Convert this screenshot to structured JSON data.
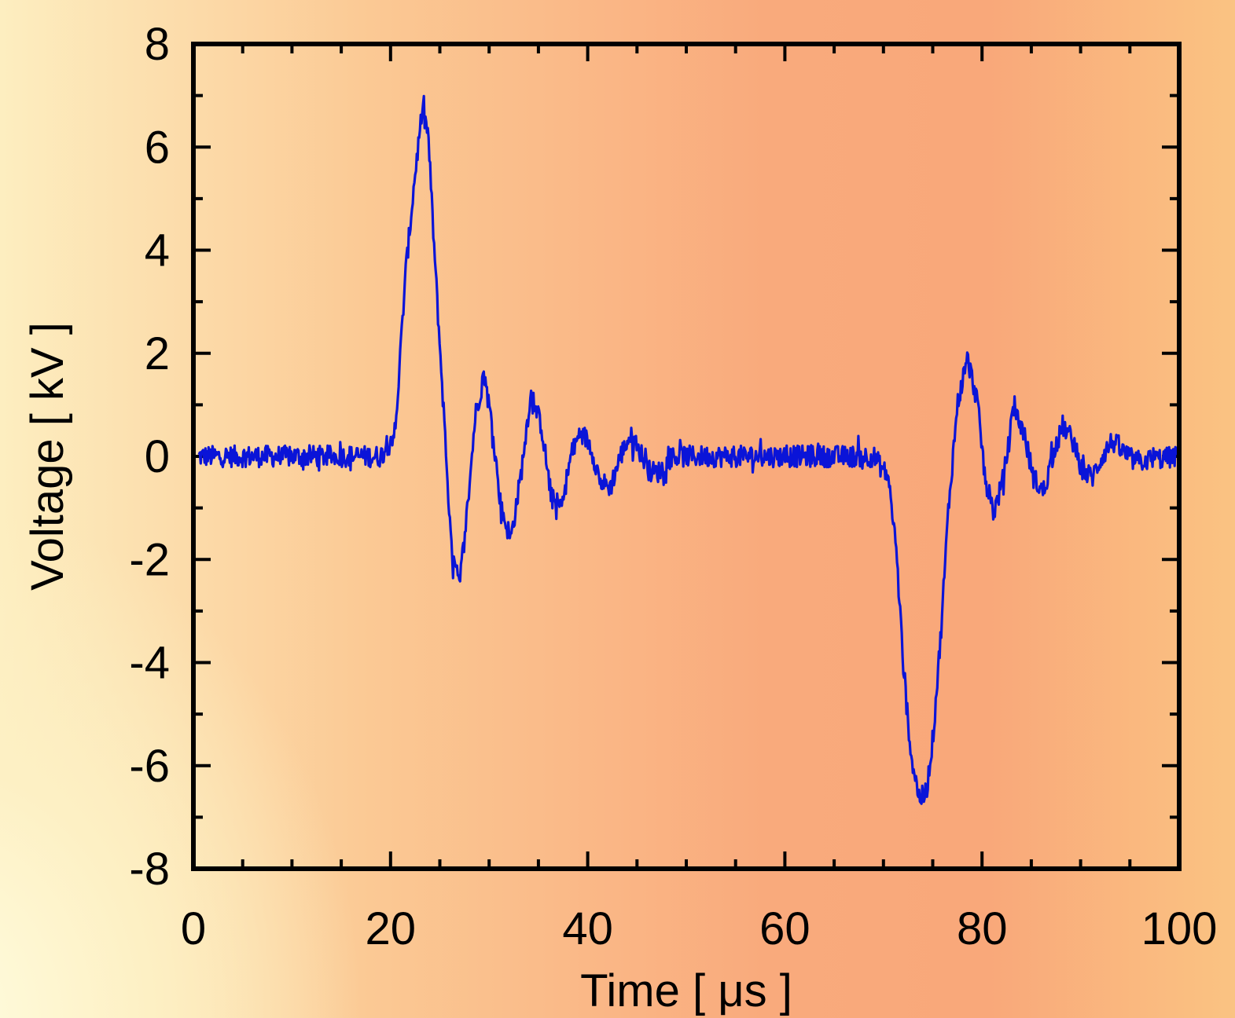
{
  "chart_data": {
    "type": "line",
    "title": "",
    "xlabel": "Time [ μs ]",
    "ylabel": "Voltage [ kV ]",
    "xlim": [
      0,
      100
    ],
    "ylim": [
      -8,
      8
    ],
    "x_ticks": [
      "0",
      "20",
      "40",
      "60",
      "80",
      "100"
    ],
    "y_ticks": [
      "8",
      "6",
      "4",
      "2",
      "0",
      "-2",
      "-4",
      "-6",
      "-8"
    ],
    "grid": false,
    "line_color": "#0a14d8",
    "series": [
      {
        "x": [
          0,
          5,
          10,
          15,
          19,
          20.5,
          21.5,
          22.5,
          23.2,
          23.8,
          24.5,
          25.5,
          26.2,
          27,
          27.8,
          28.6,
          29.5,
          30.3,
          31.2,
          32.2,
          33.2,
          34.2,
          35.3,
          36.3,
          37.3,
          38.3,
          39.3,
          40.3,
          41.3,
          42.3,
          43.3,
          44.3,
          45.3,
          46.3,
          47.3,
          48.5,
          55,
          60,
          65,
          69,
          70.5,
          71.3,
          72,
          72.8,
          73.6,
          74.3,
          75,
          75.8,
          76.6,
          77.5,
          78.5,
          79.5,
          80.3,
          81.2,
          82.2,
          83.2,
          84.2,
          85.2,
          86.2,
          87.2,
          88.2,
          89.2,
          90.2,
          91.2,
          92.2,
          93.2,
          94.2,
          95.5,
          100
        ],
        "y": [
          0,
          0,
          0,
          0,
          0,
          0.5,
          3.5,
          5.5,
          6.7,
          6.3,
          3.8,
          0.5,
          -1.9,
          -2.5,
          -1.0,
          0.8,
          1.6,
          0.6,
          -1.0,
          -1.6,
          -0.4,
          1.2,
          0.6,
          -0.8,
          -1.0,
          0.0,
          0.5,
          0.2,
          -0.5,
          -0.6,
          0.0,
          0.4,
          0.1,
          -0.3,
          -0.3,
          0.0,
          0,
          0,
          0,
          0,
          -0.4,
          -1.8,
          -4.0,
          -5.8,
          -6.6,
          -6.6,
          -5.5,
          -3.5,
          -1.0,
          1.0,
          1.9,
          1.1,
          -0.4,
          -1.1,
          -0.4,
          0.9,
          0.5,
          -0.4,
          -0.7,
          0.0,
          0.6,
          0.3,
          -0.3,
          -0.4,
          0.0,
          0.3,
          0.1,
          -0.1,
          0.0
        ]
      }
    ]
  }
}
